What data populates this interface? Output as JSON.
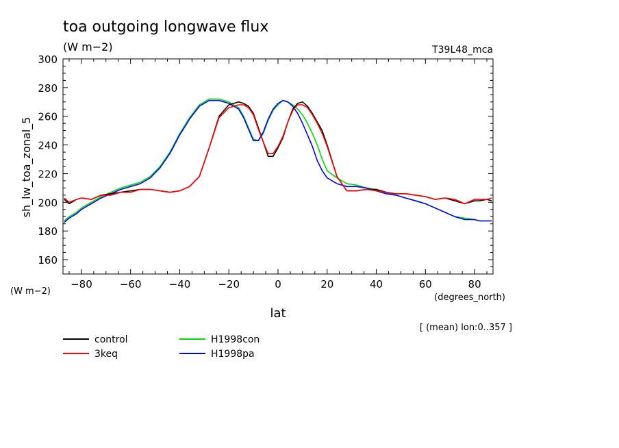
{
  "chart_data": {
    "type": "line",
    "title": "toa outgoing longwave flux",
    "units": "(W m−2)",
    "run_label": "T39L48_mca",
    "ylabel": "sh_lw_toa_zonal_5",
    "y_units": "(W m−2)",
    "xlabel": "lat",
    "x_units": "(degrees_north)",
    "mean_note": "[ (mean) lon:0..357 ]",
    "xlim": [
      -87.5,
      87.5
    ],
    "ylim": [
      150,
      300
    ],
    "x_ticks": [
      -80,
      -60,
      -40,
      -20,
      0,
      20,
      40,
      60,
      80
    ],
    "y_ticks": [
      160,
      180,
      200,
      220,
      240,
      260,
      280,
      300
    ],
    "grid": false,
    "legend_position": "below",
    "x": [
      -87,
      -85,
      -82,
      -80,
      -76,
      -72,
      -68,
      -64,
      -60,
      -56,
      -52,
      -48,
      -44,
      -40,
      -36,
      -32,
      -28,
      -24,
      -20,
      -16,
      -14,
      -12,
      -10,
      -8,
      -6,
      -4,
      -2,
      0,
      2,
      4,
      6,
      8,
      10,
      12,
      14,
      16,
      18,
      20,
      24,
      28,
      32,
      36,
      40,
      44,
      48,
      52,
      56,
      60,
      64,
      68,
      72,
      76,
      80,
      82,
      85,
      87
    ],
    "series": [
      {
        "name": "control",
        "color": "#000000",
        "values": [
          202,
          199,
          202,
          203,
          202,
          205,
          206,
          207,
          208,
          209,
          209,
          208,
          207,
          208,
          211,
          218,
          238,
          260,
          268,
          270,
          269,
          267,
          262,
          252,
          242,
          232,
          232,
          238,
          245,
          256,
          265,
          269,
          270,
          267,
          262,
          256,
          250,
          240,
          218,
          208,
          208,
          209,
          209,
          207,
          206,
          206,
          205,
          204,
          202,
          203,
          201,
          199,
          201,
          201,
          202,
          201
        ]
      },
      {
        "name": "3keq",
        "color": "#ff0000",
        "values": [
          203,
          200,
          202,
          203,
          202,
          205,
          205,
          207,
          207,
          209,
          209,
          208,
          207,
          208,
          211,
          218,
          238,
          259,
          266,
          268,
          268,
          266,
          261,
          251,
          242,
          234,
          234,
          239,
          246,
          256,
          264,
          268,
          268,
          266,
          261,
          255,
          248,
          239,
          218,
          208,
          208,
          209,
          208,
          207,
          206,
          206,
          205,
          204,
          202,
          203,
          202,
          199,
          202,
          202,
          202,
          203
        ]
      },
      {
        "name": "H1998con",
        "color": "#00dd00",
        "values": [
          187,
          190,
          193,
          196,
          200,
          204,
          207,
          210,
          212,
          214,
          218,
          225,
          235,
          248,
          259,
          268,
          272,
          272,
          270,
          266,
          260,
          252,
          244,
          243,
          248,
          257,
          264,
          268,
          271,
          270,
          268,
          265,
          261,
          255,
          248,
          240,
          230,
          222,
          217,
          213,
          212,
          210,
          209,
          207,
          205,
          203,
          201,
          199,
          196,
          193,
          190,
          189,
          188,
          187,
          187,
          187
        ]
      },
      {
        "name": "H1998pa",
        "color": "#0000ff",
        "values": [
          186,
          189,
          192,
          195,
          199,
          203,
          206,
          209,
          211,
          213,
          217,
          224,
          234,
          247,
          258,
          267,
          271,
          271,
          269,
          265,
          259,
          251,
          243,
          243,
          249,
          258,
          265,
          269,
          271,
          270,
          267,
          262,
          255,
          247,
          239,
          229,
          222,
          217,
          213,
          211,
          211,
          210,
          208,
          206,
          205,
          203,
          201,
          199,
          196,
          193,
          190,
          188,
          188,
          187,
          187,
          187
        ]
      }
    ]
  }
}
